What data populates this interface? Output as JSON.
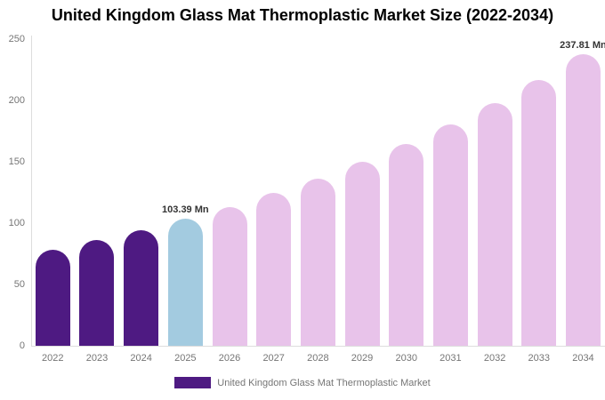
{
  "title": "United Kingdom Glass Mat Thermoplastic Market Size (2022-2034)",
  "legend": {
    "items": [
      {
        "label": "United Kingdom Glass Mat Thermoplastic Market",
        "color": "#4e1a82"
      }
    ]
  },
  "chart_data": {
    "type": "bar",
    "title": "United Kingdom Glass Mat Thermoplastic Market Size (2022-2034)",
    "categories": [
      "2022",
      "2023",
      "2024",
      "2025",
      "2026",
      "2027",
      "2028",
      "2029",
      "2030",
      "2031",
      "2032",
      "2033",
      "2034"
    ],
    "values": [
      78.3,
      85.9,
      94.2,
      103.39,
      113.4,
      124.4,
      136.5,
      149.7,
      164.2,
      180.1,
      197.5,
      216.7,
      237.81
    ],
    "unit": "Mn",
    "xlabel": "",
    "ylabel": "",
    "ylim": [
      0,
      250
    ],
    "yticks": [
      0,
      50,
      100,
      150,
      200,
      250
    ],
    "grid": false,
    "legend_position": "bottom",
    "colors": {
      "historical_2022_2024": "#4e1a82",
      "base_year_2025": "#a3cbe0",
      "forecast_2026_2034": "#e8c3ea"
    },
    "color_roles": [
      "historical",
      "historical",
      "historical",
      "base",
      "forecast",
      "forecast",
      "forecast",
      "forecast",
      "forecast",
      "forecast",
      "forecast",
      "forecast",
      "forecast"
    ],
    "data_labels": [
      {
        "category": "2025",
        "text": "103.39 Mn"
      },
      {
        "category": "2034",
        "text": "237.81 Mn"
      }
    ]
  }
}
